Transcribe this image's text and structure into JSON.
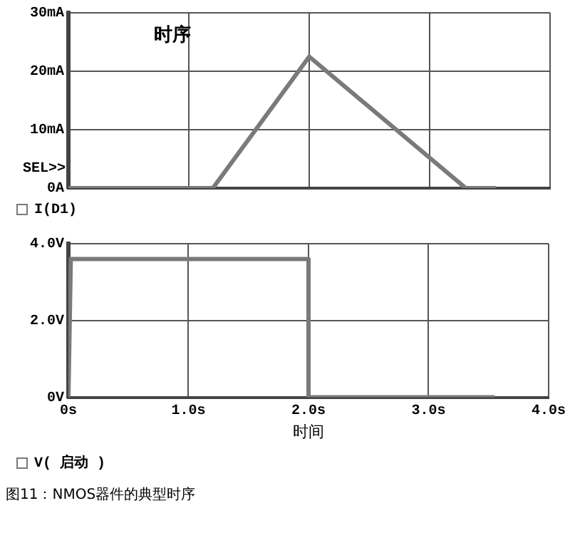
{
  "chart_data": [
    {
      "type": "line",
      "title": "时序",
      "x": [
        0,
        1.2,
        2.0,
        3.3,
        3.55
      ],
      "series": [
        {
          "name": "I(D1)",
          "color": "#7a7a7a",
          "values": [
            0,
            0,
            22.5,
            0,
            0
          ]
        }
      ],
      "xlim": [
        0,
        4
      ],
      "xticks": [
        0,
        1,
        2,
        3,
        4
      ],
      "ylim": [
        0,
        30
      ],
      "yticks": [
        {
          "value": 0,
          "label": "0A"
        },
        {
          "value": 10,
          "label": "10mA"
        },
        {
          "value": 20,
          "label": "20mA"
        },
        {
          "value": 30,
          "label": "30mA"
        }
      ],
      "tick_labels": "y",
      "grid": true,
      "legend": "bottom",
      "annotations": [
        "SEL>>"
      ]
    },
    {
      "type": "line",
      "x": [
        0,
        0.02,
        2.0,
        2.0,
        3.55
      ],
      "series": [
        {
          "name": "V( 启动 )",
          "color": "#7a7a7a",
          "values": [
            0,
            3.6,
            3.6,
            0,
            0
          ]
        }
      ],
      "xlim": [
        0,
        4
      ],
      "xticks": [
        {
          "value": 0,
          "label": "0s"
        },
        {
          "value": 1,
          "label": "1.0s"
        },
        {
          "value": 2,
          "label": "2.0s"
        },
        {
          "value": 3,
          "label": "3.0s"
        },
        {
          "value": 4,
          "label": "4.0s"
        }
      ],
      "ylim": [
        0,
        4
      ],
      "yticks": [
        {
          "value": 0,
          "label": "0V"
        },
        {
          "value": 2,
          "label": "2.0V"
        },
        {
          "value": 4,
          "label": "4.0V"
        }
      ],
      "xlabel": "时间",
      "grid": true,
      "legend": "bottom",
      "annotations": [
        "图11：NMOS器件的典型时序"
      ]
    }
  ]
}
